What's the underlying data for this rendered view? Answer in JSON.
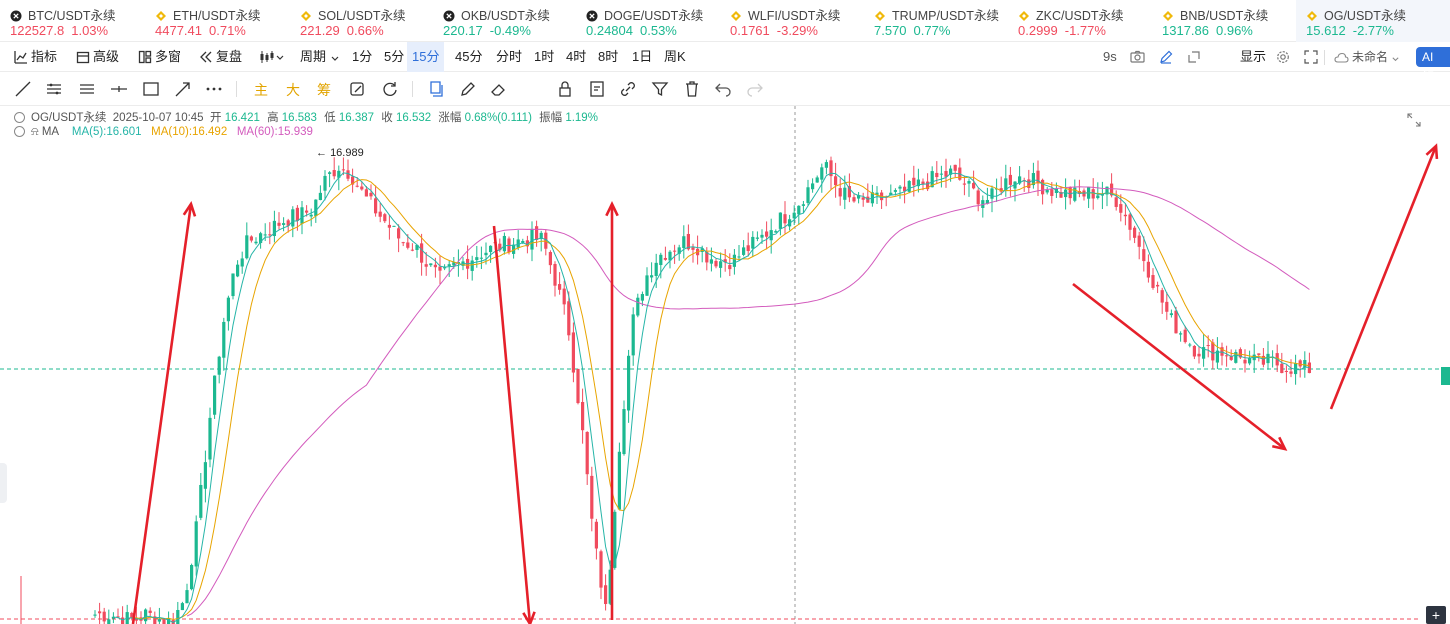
{
  "tickers": [
    {
      "icon": "x-icon",
      "name": "BTC/USDT永续",
      "price": "122527.8",
      "change": "1.03%",
      "dir": "down"
    },
    {
      "icon": "diamond-icon",
      "name": "ETH/USDT永续",
      "price": "4477.41",
      "change": "0.71%",
      "dir": "down"
    },
    {
      "icon": "diamond-icon",
      "name": "SOL/USDT永续",
      "price": "221.29",
      "change": "0.66%",
      "dir": "down"
    },
    {
      "icon": "x-icon",
      "name": "OKB/USDT永续",
      "price": "220.17",
      "change": "-0.49%",
      "dir": "up"
    },
    {
      "icon": "x-icon",
      "name": "DOGE/USDT永续",
      "price": "0.24804",
      "change": "0.53%",
      "dir": "up"
    },
    {
      "icon": "diamond-icon",
      "name": "WLFI/USDT永续",
      "price": "0.1761",
      "change": "-3.29%",
      "dir": "down"
    },
    {
      "icon": "diamond-icon",
      "name": "TRUMP/USDT永续",
      "price": "7.570",
      "change": "0.77%",
      "dir": "up"
    },
    {
      "icon": "diamond-icon",
      "name": "ZKC/USDT永续",
      "price": "0.2999",
      "change": "-1.77%",
      "dir": "down"
    },
    {
      "icon": "diamond-icon",
      "name": "BNB/USDT永续",
      "price": "1317.86",
      "change": "0.96%",
      "dir": "up"
    },
    {
      "icon": "diamond-icon",
      "name": "OG/USDT永续",
      "price": "15.612",
      "change": "-2.77%",
      "dir": "up",
      "active": true
    }
  ],
  "toolbar": {
    "indicators": "指标",
    "advanced": "高级",
    "multi_window": "多窗",
    "replay": "复盘",
    "chart_type_icon": "candle-icon",
    "period": "周期",
    "intervals": [
      "1分",
      "5分",
      "15分",
      "45分",
      "分时",
      "1时",
      "4时",
      "8时",
      "1日",
      "周K"
    ],
    "selected_interval": "15分",
    "countdown": "9s",
    "display": "显示",
    "layout_name": "未命名",
    "ai": "AI解读"
  },
  "draw_tools": {
    "text_main": "主",
    "text_big": "大",
    "text_chip": "筹",
    "icons": [
      "line-tool-icon",
      "parallel-tool-icon",
      "channel-tool-icon",
      "cross-line-icon",
      "rect-tool-icon",
      "arrow-tool-icon",
      "more-tools-icon",
      "magnet-icon",
      "refresh-icon",
      "copy-icon",
      "pen-icon",
      "eraser-icon",
      "lock-icon",
      "note-icon",
      "link-icon",
      "filter-icon",
      "trash-icon",
      "undo-icon",
      "redo-icon"
    ]
  },
  "chart_info": {
    "symbol": "OG/USDT永续",
    "datetime": "2025-10-07 10:45",
    "open_label": "开",
    "open": "16.421",
    "high_label": "高",
    "high": "16.583",
    "low_label": "低",
    "low": "16.387",
    "close_label": "收",
    "close": "16.532",
    "change_label": "涨幅",
    "change": "0.68%(0.111)",
    "amp_label": "振幅",
    "amp": "1.19%",
    "ma_label": "MA",
    "ma5": "MA(5):16.601",
    "ma10": "MA(10):16.492",
    "ma60": "MA(60):15.939",
    "high_marker": "16.989"
  },
  "colors": {
    "up": "#1cb890",
    "down": "#f04b5e",
    "ma5": "#26b5a8",
    "ma10": "#e8a400",
    "ma60": "#d35bbd",
    "annotation": "#e5202a",
    "accent": "#2f6fd9"
  },
  "chart_data": {
    "type": "candlestick",
    "timeframe": "15分",
    "high_marker": 16.989,
    "current_price": 15.612,
    "ma_series": [
      {
        "name": "MA(5)",
        "last": 16.601
      },
      {
        "name": "MA(10)",
        "last": 16.492
      },
      {
        "name": "MA(60)",
        "last": 15.939
      }
    ],
    "price_path": [
      14.0,
      14.0,
      13.98,
      13.96,
      14.0,
      13.97,
      13.95,
      14.1,
      14.6,
      15.3,
      15.9,
      16.3,
      16.45,
      16.5,
      16.55,
      16.6,
      16.62,
      16.66,
      16.85,
      16.95,
      16.9,
      16.75,
      16.65,
      16.55,
      16.45,
      16.42,
      16.3,
      16.2,
      16.28,
      16.32,
      16.37,
      16.4,
      16.43,
      16.45,
      16.47,
      16.46,
      16.2,
      15.9,
      15.3,
      14.5,
      14.0,
      15.1,
      15.9,
      16.2,
      16.35,
      16.4,
      16.45,
      16.43,
      16.35,
      16.32,
      16.33,
      16.4,
      16.46,
      16.55,
      16.62,
      16.7,
      16.82,
      16.95,
      16.82,
      16.72,
      16.7,
      16.72,
      16.74,
      16.76,
      16.8,
      16.84,
      16.87,
      16.9,
      16.83,
      16.75,
      16.72,
      16.83,
      16.88,
      16.86,
      16.82,
      16.78,
      16.76,
      16.75,
      16.77,
      16.77,
      16.72,
      16.55,
      16.35,
      16.15,
      15.95,
      15.85,
      15.75,
      15.72,
      15.73,
      15.7,
      15.68,
      15.65,
      15.66,
      15.63,
      15.62,
      15.612
    ],
    "annotations": [
      "up-arrow",
      "up-arrow",
      "down-arrow",
      "up-arrow",
      "down-arrow",
      "up-arrow"
    ]
  }
}
